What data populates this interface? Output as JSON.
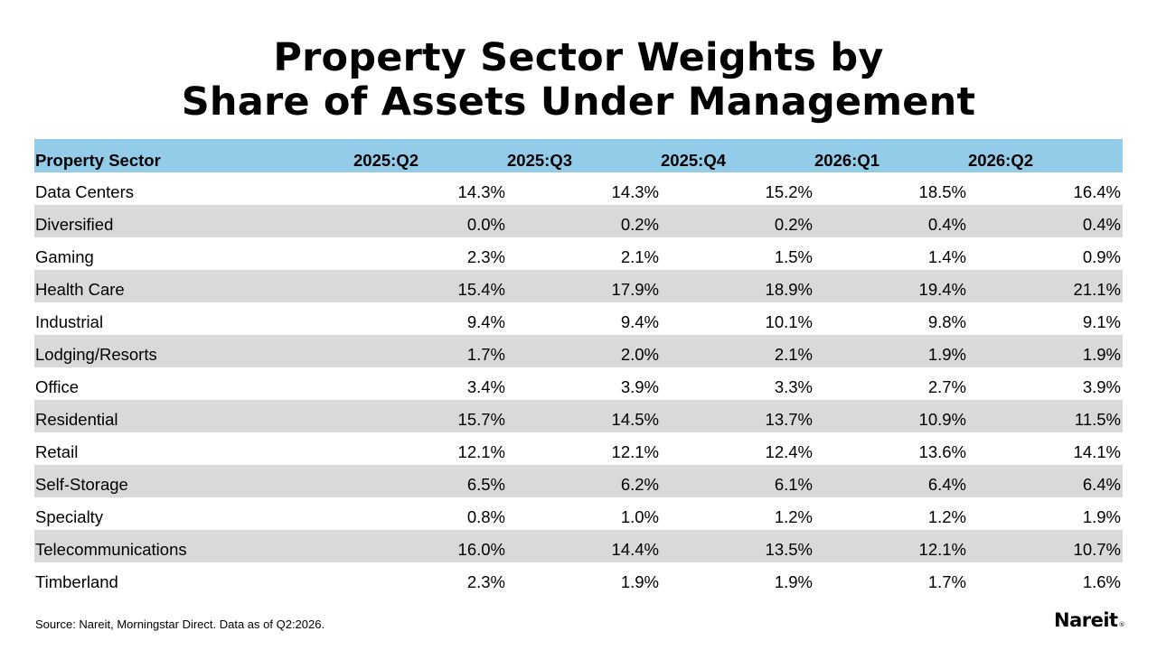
{
  "title": {
    "line1": "Property Sector Weights by",
    "line2": "Share of Assets Under Management"
  },
  "table": {
    "headers": [
      "Property Sector",
      "2025:Q2",
      "2025:Q3",
      "2025:Q4",
      "2026:Q1",
      "2026:Q2"
    ],
    "rows": [
      [
        "Data Centers",
        "14.3%",
        "14.3%",
        "15.2%",
        "18.5%",
        "16.4%"
      ],
      [
        "Diversified",
        "0.0%",
        "0.2%",
        "0.2%",
        "0.4%",
        "0.4%"
      ],
      [
        "Gaming",
        "2.3%",
        "2.1%",
        "1.5%",
        "1.4%",
        "0.9%"
      ],
      [
        "Health Care",
        "15.4%",
        "17.9%",
        "18.9%",
        "19.4%",
        "21.1%"
      ],
      [
        "Industrial",
        "9.4%",
        "9.4%",
        "10.1%",
        "9.8%",
        "9.1%"
      ],
      [
        "Lodging/Resorts",
        "1.7%",
        "2.0%",
        "2.1%",
        "1.9%",
        "1.9%"
      ],
      [
        "Office",
        "3.4%",
        "3.9%",
        "3.3%",
        "2.7%",
        "3.9%"
      ],
      [
        "Residential",
        "15.7%",
        "14.5%",
        "13.7%",
        "10.9%",
        "11.5%"
      ],
      [
        "Retail",
        "12.1%",
        "12.1%",
        "12.4%",
        "13.6%",
        "14.1%"
      ],
      [
        "Self-Storage",
        "6.5%",
        "6.2%",
        "6.1%",
        "6.4%",
        "6.4%"
      ],
      [
        "Specialty",
        "0.8%",
        "1.0%",
        "1.2%",
        "1.2%",
        "1.9%"
      ],
      [
        "Telecommunications",
        "16.0%",
        "14.4%",
        "13.5%",
        "12.1%",
        "10.7%"
      ],
      [
        "Timberland",
        "2.3%",
        "1.9%",
        "1.9%",
        "1.7%",
        "1.6%"
      ]
    ]
  },
  "source": "Source: Nareit, Morningstar Direct. Data as of Q2:2026.",
  "logo": {
    "text": "Nareit",
    "mark": "®"
  },
  "colors": {
    "header_bg": "#93cce8",
    "stripe_bg": "#d9d9d9"
  }
}
